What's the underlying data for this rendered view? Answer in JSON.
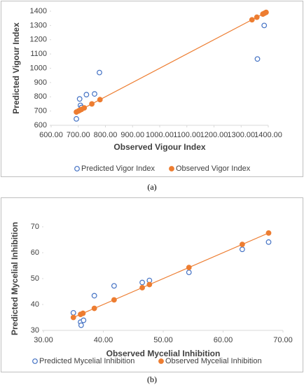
{
  "chart_data": [
    {
      "type": "scatter",
      "x_label": "Observed Vigour Index",
      "y_label": "Predicted Vigour Index",
      "caption": "(a)",
      "xlim": [
        600,
        1400
      ],
      "ylim": [
        600,
        1400
      ],
      "xticks": [
        {
          "value": 600,
          "label": "600.00"
        },
        {
          "value": 700,
          "label": "700.00"
        },
        {
          "value": 800,
          "label": "800.00"
        },
        {
          "value": 900,
          "label": "900.00"
        },
        {
          "value": 1000,
          "label": "1000.00"
        },
        {
          "value": 1100,
          "label": "1100.00"
        },
        {
          "value": 1200,
          "label": "1200.00"
        },
        {
          "value": 1300,
          "label": "1300.00"
        },
        {
          "value": 1400,
          "label": "1400.00"
        }
      ],
      "yticks": [
        600,
        700,
        800,
        900,
        1000,
        1100,
        1200,
        1300,
        1400
      ],
      "series": [
        {
          "name": "Predicted Vigor Index",
          "color": "#4472c4",
          "marker": "open",
          "x": [
            693,
            705,
            708,
            712,
            730,
            760,
            778,
            1360,
            1385
          ],
          "values": [
            645,
            785,
            740,
            725,
            815,
            820,
            970,
            1065,
            1300
          ]
        },
        {
          "name": "Observed Vigor Index",
          "color": "#ed7d31",
          "marker": "filled",
          "x": [
            693,
            700,
            705,
            712,
            722,
            750,
            780,
            1340,
            1358,
            1380,
            1386,
            1392
          ],
          "values": [
            693,
            700,
            705,
            712,
            722,
            750,
            780,
            1340,
            1358,
            1380,
            1386,
            1392
          ]
        }
      ],
      "trendline": {
        "color": "#ed7d31",
        "x": [
          690,
          1395
        ],
        "y": [
          690,
          1395
        ]
      }
    },
    {
      "type": "scatter",
      "x_label": "Observed Mycelial Inhibition",
      "y_label": "Predicted Mycelial Inhibition",
      "caption": "(b)",
      "xlim": [
        30,
        70
      ],
      "ylim": [
        30,
        70
      ],
      "xticks": [
        {
          "value": 30,
          "label": "30.00"
        },
        {
          "value": 40,
          "label": "40.00"
        },
        {
          "value": 50,
          "label": "50.00"
        },
        {
          "value": 60,
          "label": "60.00"
        },
        {
          "value": 70,
          "label": "70.00"
        }
      ],
      "yticks": [
        30,
        40,
        50,
        60,
        70
      ],
      "series": [
        {
          "name": "Predicted Mycelial Inhibition",
          "color": "#4472c4",
          "marker": "open",
          "x": [
            35,
            36.2,
            36.3,
            36.7,
            38.5,
            41.8,
            46.5,
            47.7,
            54.3,
            63.2,
            67.6
          ],
          "values": [
            36.8,
            33.2,
            32,
            33.9,
            43.4,
            47.2,
            48.5,
            49.3,
            52.4,
            61.3,
            64.1
          ]
        },
        {
          "name": "Observed Mycelial Inhibition",
          "color": "#ed7d31",
          "marker": "filled",
          "x": [
            35,
            36.2,
            36.6,
            38.5,
            41.8,
            46.5,
            47.7,
            54.3,
            63.2,
            67.6
          ],
          "values": [
            35,
            36.2,
            36.6,
            38.5,
            41.8,
            46.5,
            47.7,
            54.3,
            63.2,
            67.6
          ]
        }
      ],
      "trendline": {
        "color": "#ed7d31",
        "x": [
          35,
          67.6
        ],
        "y": [
          35,
          67.6
        ]
      }
    }
  ]
}
